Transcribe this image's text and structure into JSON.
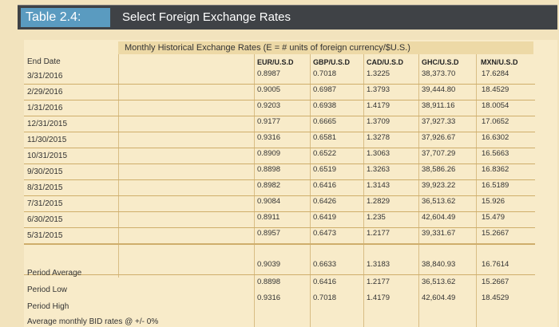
{
  "header": {
    "table_number": "Table 2.4:",
    "title": "Select Foreign Exchange Rates"
  },
  "table": {
    "caption": "Monthly Historical Exchange Rates (E = # units of foreign currency/$U.S.)",
    "date_header": "End Date",
    "columns": [
      "EUR/U.S.D",
      "GBP/U.S.D",
      "CAD/U.S.D",
      "GHC/U.S.D",
      "MXN/U.S.D"
    ],
    "rows": [
      {
        "date": "3/31/2016",
        "values": [
          "0.8987",
          "0.7018",
          "1.3225",
          "38,373.70",
          "17.6284"
        ]
      },
      {
        "date": "2/29/2016",
        "values": [
          "0.9005",
          "0.6987",
          "1.3793",
          "39,444.80",
          "18.4529"
        ]
      },
      {
        "date": "1/31/2016",
        "values": [
          "0.9203",
          "0.6938",
          "1.4179",
          "38,911.16",
          "18.0054"
        ]
      },
      {
        "date": "12/31/2015",
        "values": [
          "0.9177",
          "0.6665",
          "1.3709",
          "37,927.33",
          "17.0652"
        ]
      },
      {
        "date": "11/30/2015",
        "values": [
          "0.9316",
          "0.6581",
          "1.3278",
          "37,926.67",
          "16.6302"
        ]
      },
      {
        "date": "10/31/2015",
        "values": [
          "0.8909",
          "0.6522",
          "1.3063",
          "37,707.29",
          "16.5663"
        ]
      },
      {
        "date": "9/30/2015",
        "values": [
          "0.8898",
          "0.6519",
          "1.3263",
          "38,586.26",
          "16.8362"
        ]
      },
      {
        "date": "8/31/2015",
        "values": [
          "0.8982",
          "0.6416",
          "1.3143",
          "39,923.22",
          "16.5189"
        ]
      },
      {
        "date": "7/31/2015",
        "values": [
          "0.9084",
          "0.6426",
          "1.2829",
          "36,513.62",
          "15.926"
        ]
      },
      {
        "date": "6/30/2015",
        "values": [
          "0.8911",
          "0.6419",
          "1.235",
          "42,604.49",
          "15.479"
        ]
      },
      {
        "date": "5/31/2015",
        "values": [
          "0.8957",
          "0.6473",
          "1.2177",
          "39,331.67",
          "15.2667"
        ]
      }
    ],
    "summary_labels": [
      "Period Average",
      "Period Low",
      "Period High",
      "Average monthly BID rates @ +/- 0%"
    ],
    "summary_rows": [
      [
        "0.9039",
        "0.6633",
        "1.3183",
        "38,840.93",
        "16.7614"
      ],
      [
        "0.8898",
        "0.6416",
        "1.2177",
        "36,513.62",
        "15.2667"
      ],
      [
        "0.9316",
        "0.7018",
        "1.4179",
        "42,604.49",
        "18.4529"
      ]
    ]
  }
}
